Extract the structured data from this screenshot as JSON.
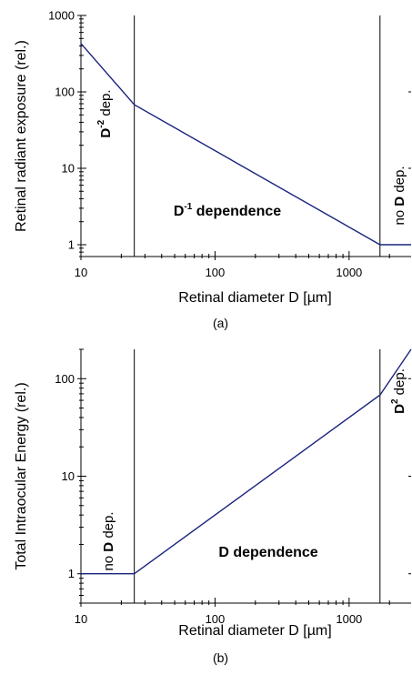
{
  "chart_data": [
    {
      "type": "line",
      "panel": "a",
      "caption": "(a)",
      "xlabel": "Retinal diameter D [µm]",
      "ylabel": "Retinal radiant exposure (rel.)",
      "xscale": "log",
      "yscale": "log",
      "xlim": [
        10,
        2900
      ],
      "ylim": [
        0.7,
        1000
      ],
      "xticks": [
        {
          "v": 10,
          "label": "10"
        },
        {
          "v": 100,
          "label": "100"
        },
        {
          "v": 1000,
          "label": "1000"
        }
      ],
      "yticks": [
        {
          "v": 1,
          "label": "1"
        },
        {
          "v": 10,
          "label": "10"
        },
        {
          "v": 100,
          "label": "100"
        },
        {
          "v": 1000,
          "label": "1000"
        }
      ],
      "vlines": [
        25,
        1700
      ],
      "color": "#1a237e",
      "series": [
        {
          "x": [
            10,
            25,
            1700,
            2900
          ],
          "y": [
            430,
            68,
            1,
            1
          ]
        }
      ],
      "annotations": [
        {
          "id": "d2",
          "base": "D",
          "sup": "-2",
          "rest": " dep."
        },
        {
          "id": "d1",
          "base": "D",
          "sup": "-1",
          "rest": " dependence"
        },
        {
          "id": "none",
          "pre": "no ",
          "base": "D",
          "rest": " dep."
        }
      ]
    },
    {
      "type": "line",
      "panel": "b",
      "caption": "(b)",
      "xlabel": "Retinal diameter D [µm]",
      "ylabel": "Total Intraocular Energy (rel.)",
      "xscale": "log",
      "yscale": "log",
      "xlim": [
        10,
        2900
      ],
      "ylim": [
        0.5,
        200
      ],
      "xticks": [
        {
          "v": 10,
          "label": "10"
        },
        {
          "v": 100,
          "label": "100"
        },
        {
          "v": 1000,
          "label": "1000"
        }
      ],
      "yticks": [
        {
          "v": 1,
          "label": "1"
        },
        {
          "v": 10,
          "label": "10"
        },
        {
          "v": 100,
          "label": "100"
        }
      ],
      "vlines": [
        25,
        1700
      ],
      "color": "#1a237e",
      "series": [
        {
          "x": [
            10,
            25,
            1700,
            2900
          ],
          "y": [
            1,
            1,
            68,
            200
          ]
        }
      ],
      "annotations": [
        {
          "id": "none",
          "pre": "no ",
          "base": "D",
          "rest": " dep."
        },
        {
          "id": "d1",
          "base": "D",
          "rest": " dependence"
        },
        {
          "id": "d2",
          "base": "D",
          "sup": "2",
          "rest": " dep."
        }
      ]
    }
  ]
}
